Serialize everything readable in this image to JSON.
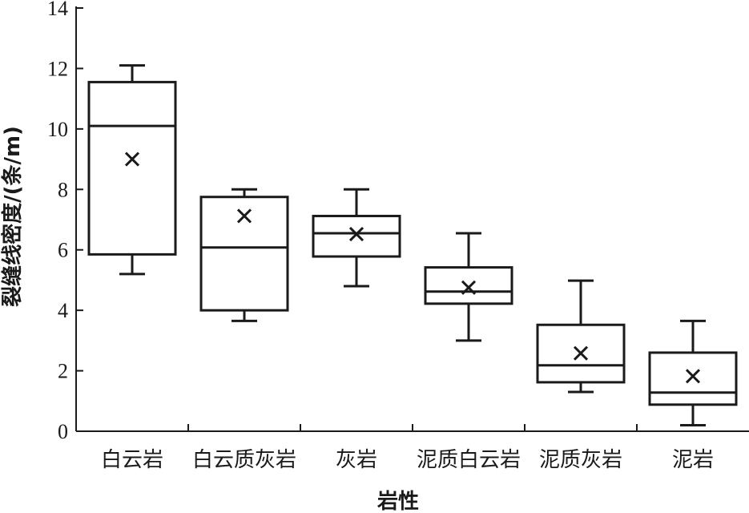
{
  "chart_data": {
    "type": "box",
    "xlabel": "岩性",
    "ylabel": "裂缝线密度/(条/m)",
    "ylim": [
      0,
      14
    ],
    "yticks": [
      0,
      2,
      4,
      6,
      8,
      10,
      12,
      14
    ],
    "categories": [
      "白云岩",
      "白云质灰岩",
      "灰岩",
      "泥质白云岩",
      "泥质灰岩",
      "泥岩"
    ],
    "boxes": [
      {
        "min": 5.2,
        "q1": 5.85,
        "median": 10.1,
        "q3": 11.55,
        "max": 12.1,
        "mean": 9.0
      },
      {
        "min": 3.65,
        "q1": 4.0,
        "median": 6.08,
        "q3": 7.75,
        "max": 8.0,
        "mean": 7.12
      },
      {
        "min": 4.8,
        "q1": 5.78,
        "median": 6.55,
        "q3": 7.12,
        "max": 8.0,
        "mean": 6.52
      },
      {
        "min": 3.0,
        "q1": 4.22,
        "median": 4.62,
        "q3": 5.42,
        "max": 6.55,
        "mean": 4.75
      },
      {
        "min": 1.3,
        "q1": 1.62,
        "median": 2.18,
        "q3": 3.52,
        "max": 4.98,
        "mean": 2.58
      },
      {
        "min": 0.2,
        "q1": 0.88,
        "median": 1.28,
        "q3": 2.6,
        "max": 3.65,
        "mean": 1.82
      }
    ]
  }
}
